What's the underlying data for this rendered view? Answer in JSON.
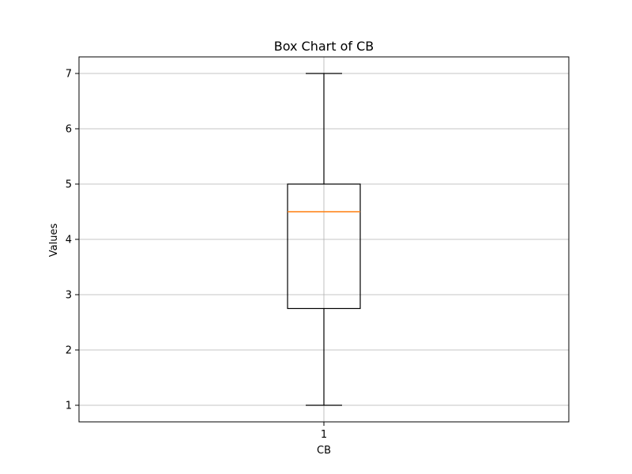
{
  "chart_data": {
    "type": "box",
    "title": "Box Chart of CB",
    "xlabel": "CB",
    "ylabel": "Values",
    "categories": [
      "1"
    ],
    "box": {
      "whisker_low": 1,
      "q1": 2.75,
      "median": 4.5,
      "q3": 5,
      "whisker_high": 7
    },
    "ylim": [
      0.7,
      7.3
    ],
    "yticks": [
      1,
      2,
      3,
      4,
      5,
      6,
      7
    ],
    "grid": true,
    "colors": {
      "box": "#000000",
      "median": "#ff7f0e",
      "grid": "#b0b0b0"
    }
  }
}
